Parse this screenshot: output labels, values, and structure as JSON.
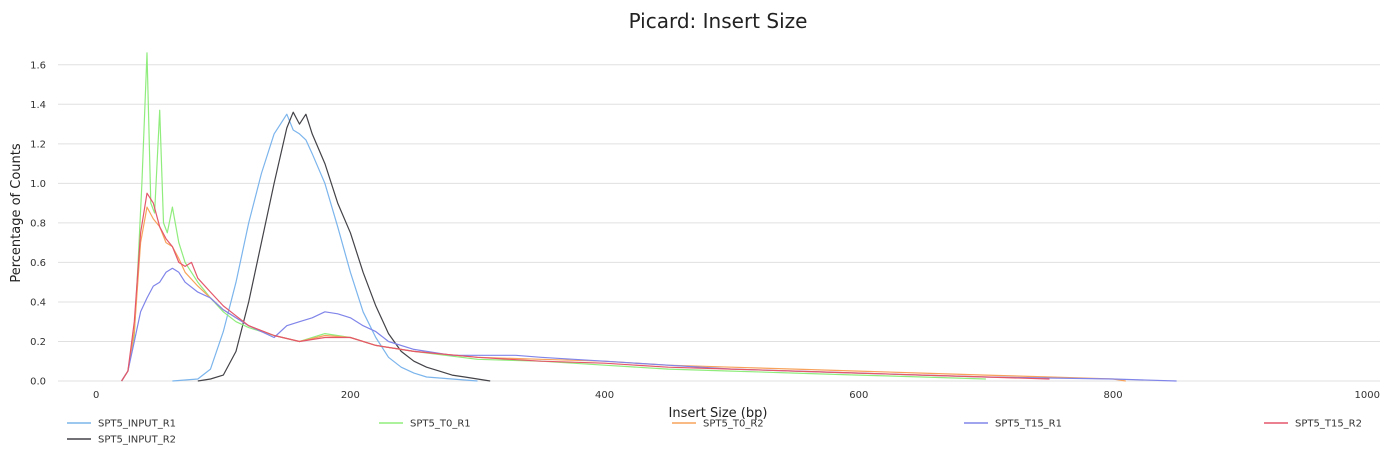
{
  "chart_data": {
    "type": "line",
    "title": "Picard: Insert Size",
    "xlabel": "Insert Size (bp)",
    "ylabel": "Percentage of Counts",
    "xlim": [
      -30,
      1010
    ],
    "ylim": [
      0,
      1.7
    ],
    "xticks": [
      0,
      200,
      400,
      600,
      800,
      1000
    ],
    "yticks": [
      0.0,
      0.2,
      0.4,
      0.6,
      0.8,
      1.0,
      1.2,
      1.4,
      1.6
    ],
    "xtick_labels": [
      "0",
      "200",
      "400",
      "600",
      "800",
      "1000"
    ],
    "ytick_labels": [
      "0.0",
      "0.2",
      "0.4",
      "0.6",
      "0.8",
      "1.0",
      "1.2",
      "1.4",
      "1.6"
    ],
    "grid": "horizontal",
    "legend": "bottom",
    "series": [
      {
        "name": "SPT5_INPUT_R1",
        "color": "#7cb5ec",
        "x": [
          60,
          80,
          90,
          100,
          110,
          120,
          130,
          140,
          145,
          150,
          155,
          160,
          165,
          170,
          180,
          190,
          200,
          210,
          220,
          230,
          240,
          250,
          260,
          280,
          300
        ],
        "y": [
          0,
          0.01,
          0.06,
          0.25,
          0.5,
          0.8,
          1.05,
          1.25,
          1.3,
          1.35,
          1.27,
          1.25,
          1.22,
          1.15,
          1.0,
          0.78,
          0.55,
          0.35,
          0.22,
          0.12,
          0.07,
          0.04,
          0.02,
          0.01,
          0
        ]
      },
      {
        "name": "SPT5_INPUT_R2",
        "color": "#434348",
        "x": [
          80,
          90,
          100,
          110,
          120,
          130,
          140,
          150,
          155,
          160,
          165,
          170,
          180,
          190,
          200,
          210,
          220,
          230,
          240,
          250,
          260,
          270,
          280,
          290,
          300,
          310
        ],
        "y": [
          0,
          0.01,
          0.03,
          0.15,
          0.4,
          0.7,
          1.0,
          1.28,
          1.36,
          1.3,
          1.35,
          1.25,
          1.1,
          0.9,
          0.75,
          0.55,
          0.38,
          0.24,
          0.15,
          0.1,
          0.07,
          0.05,
          0.03,
          0.02,
          0.01,
          0
        ]
      },
      {
        "name": "SPT5_T0_R1",
        "color": "#90ed7d",
        "x": [
          20,
          25,
          30,
          33,
          36,
          40,
          43,
          46,
          50,
          53,
          56,
          60,
          65,
          70,
          80,
          90,
          100,
          110,
          120,
          140,
          160,
          180,
          200,
          220,
          250,
          300,
          350,
          400,
          450,
          500,
          550,
          600,
          650,
          700
        ],
        "y": [
          0,
          0.05,
          0.23,
          0.6,
          1.0,
          1.66,
          0.9,
          0.85,
          1.37,
          0.8,
          0.75,
          0.88,
          0.7,
          0.6,
          0.5,
          0.42,
          0.35,
          0.3,
          0.27,
          0.23,
          0.2,
          0.24,
          0.22,
          0.18,
          0.15,
          0.11,
          0.1,
          0.08,
          0.06,
          0.05,
          0.04,
          0.03,
          0.02,
          0.01
        ]
      },
      {
        "name": "SPT5_T0_R2",
        "color": "#f7a35c",
        "x": [
          20,
          25,
          30,
          35,
          40,
          45,
          50,
          55,
          60,
          65,
          70,
          80,
          90,
          100,
          110,
          120,
          140,
          160,
          180,
          200,
          220,
          250,
          300,
          350,
          400,
          450,
          500,
          550,
          600,
          650,
          700,
          750,
          800,
          810
        ],
        "y": [
          0,
          0.05,
          0.25,
          0.7,
          0.88,
          0.82,
          0.78,
          0.7,
          0.68,
          0.62,
          0.55,
          0.48,
          0.42,
          0.36,
          0.32,
          0.28,
          0.23,
          0.2,
          0.23,
          0.22,
          0.18,
          0.15,
          0.12,
          0.11,
          0.1,
          0.08,
          0.07,
          0.06,
          0.05,
          0.04,
          0.03,
          0.02,
          0.01,
          0
        ]
      },
      {
        "name": "SPT5_T15_R1",
        "color": "#8085e9",
        "x": [
          20,
          25,
          30,
          35,
          40,
          45,
          50,
          55,
          60,
          65,
          70,
          80,
          90,
          100,
          110,
          120,
          130,
          140,
          150,
          160,
          170,
          180,
          190,
          200,
          210,
          220,
          230,
          250,
          280,
          300,
          330,
          350,
          400,
          450,
          500,
          550,
          600,
          650,
          700,
          750,
          800,
          850
        ],
        "y": [
          0,
          0.05,
          0.2,
          0.35,
          0.42,
          0.48,
          0.5,
          0.55,
          0.57,
          0.55,
          0.5,
          0.45,
          0.42,
          0.36,
          0.32,
          0.28,
          0.25,
          0.22,
          0.28,
          0.3,
          0.32,
          0.35,
          0.34,
          0.32,
          0.28,
          0.25,
          0.2,
          0.16,
          0.13,
          0.13,
          0.13,
          0.12,
          0.1,
          0.08,
          0.06,
          0.05,
          0.04,
          0.03,
          0.02,
          0.015,
          0.01,
          0
        ]
      },
      {
        "name": "SPT5_T15_R2",
        "color": "#e4576b",
        "x": [
          20,
          25,
          30,
          35,
          40,
          45,
          50,
          55,
          60,
          65,
          70,
          75,
          80,
          90,
          100,
          110,
          120,
          140,
          160,
          180,
          200,
          220,
          250,
          300,
          350,
          400,
          450,
          500,
          550,
          600,
          650,
          700,
          750
        ],
        "y": [
          0,
          0.05,
          0.3,
          0.75,
          0.95,
          0.9,
          0.78,
          0.72,
          0.68,
          0.6,
          0.58,
          0.6,
          0.52,
          0.45,
          0.38,
          0.33,
          0.28,
          0.23,
          0.2,
          0.22,
          0.22,
          0.18,
          0.15,
          0.12,
          0.1,
          0.09,
          0.07,
          0.06,
          0.05,
          0.04,
          0.03,
          0.02,
          0.01
        ]
      }
    ]
  }
}
